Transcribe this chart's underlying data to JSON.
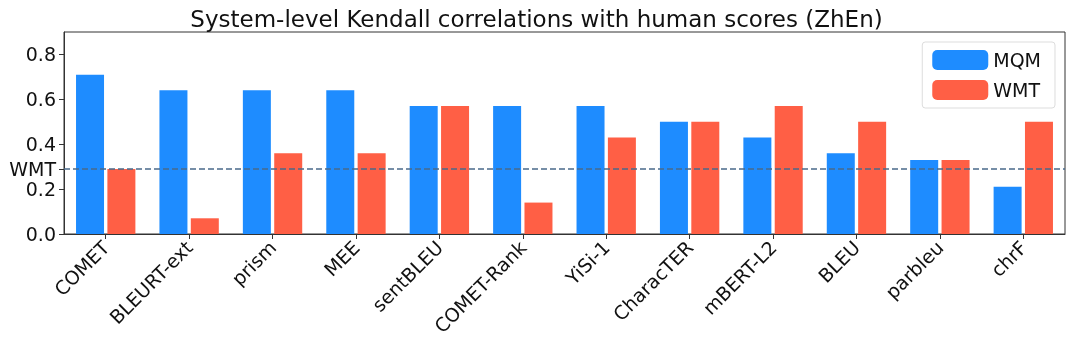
{
  "chart_data": {
    "type": "bar",
    "title": "System-level Kendall correlations with human scores (ZhEn)",
    "categories": [
      "COMET",
      "BLEURT-ext",
      "prism",
      "MEE",
      "sentBLEU",
      "COMET-Rank",
      "YiSi-1",
      "CharacTER",
      "mBERT-L2",
      "BLEU",
      "parbleu",
      "chrF"
    ],
    "series": [
      {
        "name": "MQM",
        "color": "#1e8cff",
        "values": [
          0.71,
          0.64,
          0.64,
          0.64,
          0.57,
          0.57,
          0.57,
          0.5,
          0.43,
          0.36,
          0.33,
          0.21
        ]
      },
      {
        "name": "WMT",
        "color": "#ff5f45",
        "values": [
          0.29,
          0.07,
          0.36,
          0.36,
          0.57,
          0.14,
          0.43,
          0.5,
          0.57,
          0.5,
          0.33,
          0.5
        ]
      }
    ],
    "ylim": [
      0,
      0.9
    ],
    "yticks": [
      {
        "value": 0,
        "label": "0.0"
      },
      0.2,
      {
        "value": 0.29,
        "label": "WMT"
      },
      0.4,
      0.6,
      0.8
    ],
    "ref_lines": [
      {
        "axis": "y",
        "value": 0.29,
        "color": "#4a6a8a",
        "line_style": "dashed"
      }
    ],
    "grid": false,
    "legend": "top right"
  }
}
